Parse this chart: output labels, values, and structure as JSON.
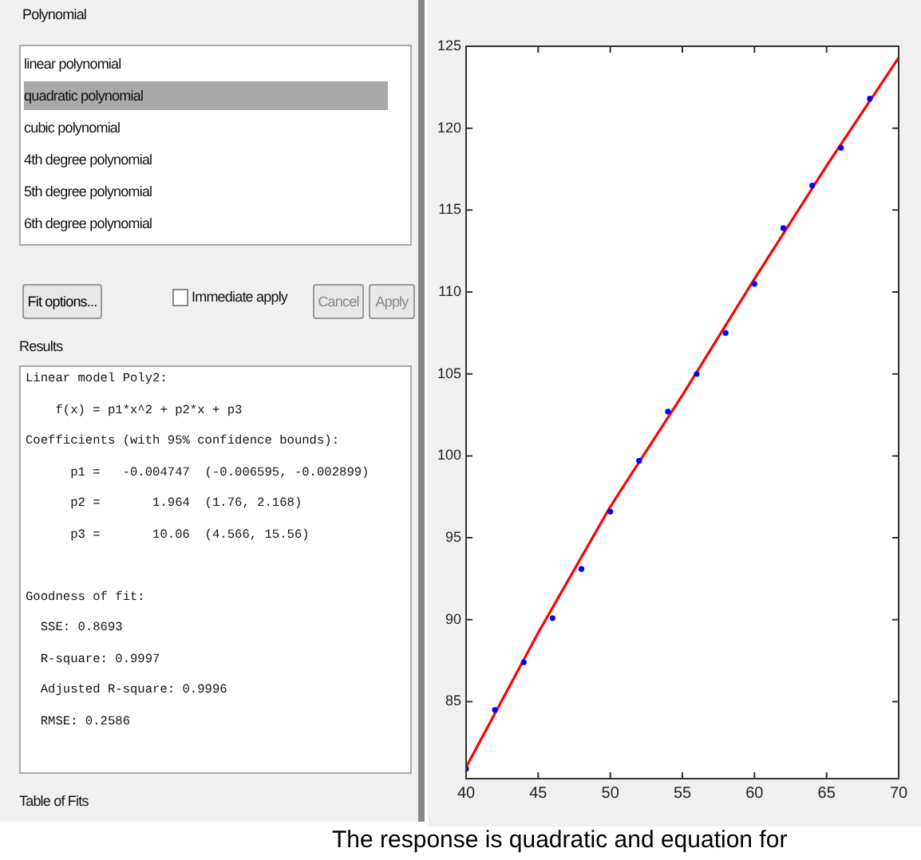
{
  "chart_data": {
    "type": "scatter",
    "annotations": [
      "Polynomial",
      "linear polynomial",
      "quadratic polynomial",
      "cubic polynomial",
      "4th degree polynomial",
      "5th degree polynomial",
      "6th degree polynomial",
      "Fit options...",
      "Immediate apply",
      "Cancel",
      "Apply",
      "Results",
      "Linear model Poly2:",
      "    f(x) = p1*x^2 + p2*x + p3",
      "Coefficients (with 95% confidence bounds):",
      "      p1 =   -0.004747  (-0.006595, -0.002899)",
      "      p2 =       1.964  (1.76, 2.168)",
      "      p3 =       10.06  (4.566, 15.56)",
      "Goodness of fit:",
      "  SSE: 0.8693",
      "  R-square: 0.9997",
      "  Adjusted R-square: 0.9996",
      "  RMSE: 0.2586",
      "Table of Fits",
      "The response is quadratic and equation for"
    ],
    "series": [
      {
        "type": "scatter",
        "color": "#0000ff",
        "x": [
          40,
          42,
          44,
          46,
          48,
          50,
          52,
          54,
          56,
          58,
          60,
          62,
          64,
          66,
          68
        ],
        "values": [
          80.9,
          84.5,
          87.4,
          90.1,
          93.1,
          96.6,
          99.7,
          102.7,
          105,
          107.5,
          110.5,
          113.9,
          116.5,
          118.8,
          121.8
        ]
      },
      {
        "type": "line",
        "marker": "none",
        "color": "#ff0000",
        "x": [
          40,
          45,
          50,
          55,
          60,
          65,
          70
        ],
        "values": [
          81,
          89.2,
          96.9,
          103.7,
          110.8,
          117.7,
          124.3
        ]
      }
    ],
    "xlim": [
      40,
      70
    ],
    "xticks": [
      40,
      45,
      50,
      55,
      60,
      65,
      70
    ],
    "ylim": [
      80.3,
      125
    ],
    "yticks": [
      85,
      90,
      95,
      100,
      105,
      110,
      115,
      120,
      125
    ],
    "grid": false,
    "legend": false,
    "marker": "circle",
    "line_style": "solid"
  }
}
